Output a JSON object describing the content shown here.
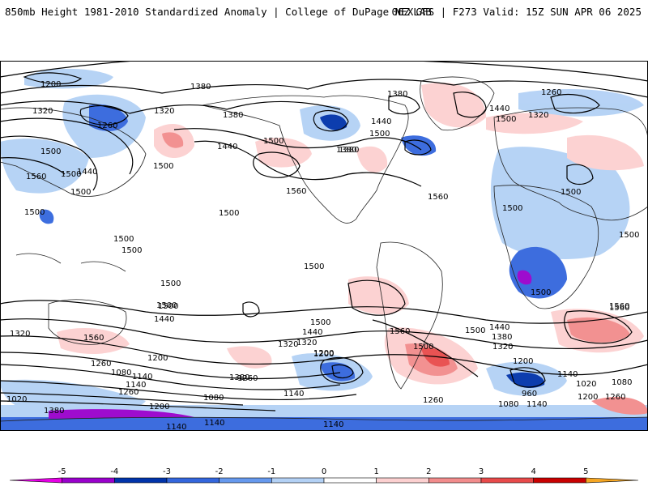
{
  "header": {
    "title_left": "850mb Height 1981-2010 Standardized Anomaly | College of DuPage NEXLAB",
    "title_right": "06Z GFS | F273 Valid: 15Z SUN APR 06 2025"
  },
  "colorbar": {
    "ticks": [
      "-5",
      "-4",
      "-3",
      "-2",
      "-1",
      "0",
      "1",
      "2",
      "3",
      "4",
      "5"
    ],
    "colors": [
      "#e600e6",
      "#9900cc",
      "#0033aa",
      "#3366dd",
      "#6699ee",
      "#b3d1f5",
      "#ffffff",
      "#fcd0d0",
      "#f28c8c",
      "#e84a4a",
      "#c80000",
      "#f5a623"
    ]
  },
  "contour_labels": [
    "1380",
    "1200",
    "1380",
    "1320",
    "1320",
    "1260",
    "1380",
    "1380",
    "1380",
    "1440",
    "1260",
    "1440",
    "1320",
    "1500",
    "1440",
    "1500",
    "1500",
    "1500",
    "1380",
    "1500",
    "1500",
    "1440",
    "1560",
    "1560",
    "1500",
    "1560",
    "1500",
    "1500",
    "1500",
    "1500",
    "1500",
    "1500",
    "1500",
    "1500",
    "1500",
    "1500",
    "1500",
    "1560",
    "1320",
    "1560",
    "1440",
    "1500",
    "1260",
    "1080",
    "1140",
    "1200",
    "1140",
    "1020",
    "1260",
    "1380",
    "1260",
    "1320",
    "1200",
    "1140",
    "1200",
    "1080",
    "1140",
    "1140",
    "1140",
    "1500",
    "1440",
    "1320",
    "1380",
    "1200",
    "1560",
    "1500",
    "1260",
    "1500",
    "1440",
    "1380",
    "1320",
    "1200",
    "1140",
    "1020",
    "960",
    "1080",
    "1080",
    "1200",
    "1260",
    "1140",
    "1560"
  ]
}
